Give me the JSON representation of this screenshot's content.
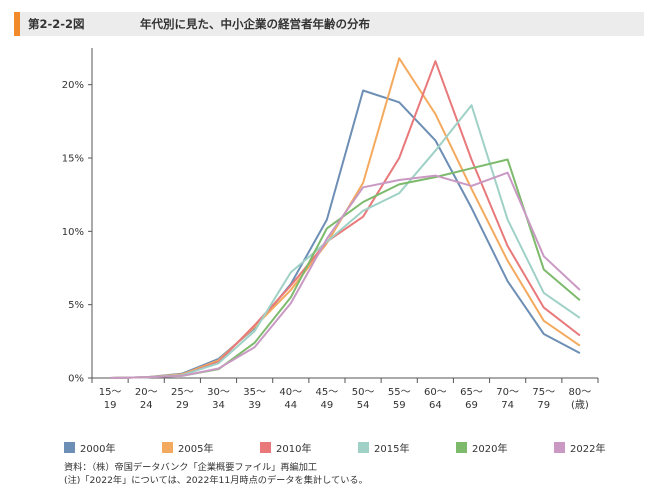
{
  "figure": {
    "number": "第2-2-2図",
    "title": "年代別に見た、中小企業の経営者年齢の分布"
  },
  "chart_data": {
    "type": "line",
    "categories": [
      [
        "15～",
        "19"
      ],
      [
        "20～",
        "24"
      ],
      [
        "25～",
        "29"
      ],
      [
        "30～",
        "34"
      ],
      [
        "35～",
        "39"
      ],
      [
        "40～",
        "44"
      ],
      [
        "45～",
        "49"
      ],
      [
        "50～",
        "54"
      ],
      [
        "55～",
        "59"
      ],
      [
        "60～",
        "64"
      ],
      [
        "65～",
        "69"
      ],
      [
        "70～",
        "74"
      ],
      [
        "75～",
        "79"
      ],
      [
        "80～",
        "(歳)"
      ]
    ],
    "ylim": [
      0,
      22.5
    ],
    "yticks": [
      0,
      5,
      10,
      15,
      20
    ],
    "ytick_labels": [
      "0%",
      "5%",
      "10%",
      "15%",
      "20%"
    ],
    "grid": false,
    "legend_position": "bottom",
    "series": [
      {
        "name": "2000年",
        "color": "#6d8eb5",
        "values": [
          0.0,
          0.05,
          0.3,
          1.3,
          3.4,
          6.4,
          10.8,
          19.6,
          18.8,
          16.2,
          11.6,
          6.6,
          3.0,
          1.7
        ]
      },
      {
        "name": "2005年",
        "color": "#f4aa5e",
        "values": [
          0.0,
          0.05,
          0.25,
          1.2,
          3.5,
          6.0,
          9.2,
          13.3,
          21.8,
          18.0,
          12.9,
          8.0,
          3.9,
          2.2
        ]
      },
      {
        "name": "2010年",
        "color": "#e8787a",
        "values": [
          0.0,
          0.05,
          0.2,
          1.1,
          3.6,
          6.3,
          9.3,
          11.0,
          15.0,
          21.6,
          14.9,
          9.0,
          4.8,
          2.9
        ]
      },
      {
        "name": "2015年",
        "color": "#9fd1c6",
        "values": [
          0.0,
          0.05,
          0.2,
          1.0,
          3.2,
          7.2,
          9.3,
          11.4,
          12.6,
          15.5,
          18.6,
          10.8,
          5.8,
          4.1
        ]
      },
      {
        "name": "2020年",
        "color": "#7dba6c",
        "values": [
          0.0,
          0.05,
          0.15,
          0.6,
          2.4,
          5.5,
          10.2,
          12.0,
          13.2,
          13.7,
          14.3,
          14.9,
          7.4,
          5.3
        ]
      },
      {
        "name": "2022年",
        "color": "#c999c4",
        "values": [
          0.0,
          0.05,
          0.15,
          0.65,
          2.1,
          5.1,
          9.5,
          13.0,
          13.5,
          13.8,
          13.1,
          14.0,
          8.3,
          6.0
        ]
      }
    ]
  },
  "notes": [
    "資料：（株）帝国データバンク「企業概要ファイル」再編加工",
    "(注)「2022年」については、2022年11月時点のデータを集計している。"
  ]
}
